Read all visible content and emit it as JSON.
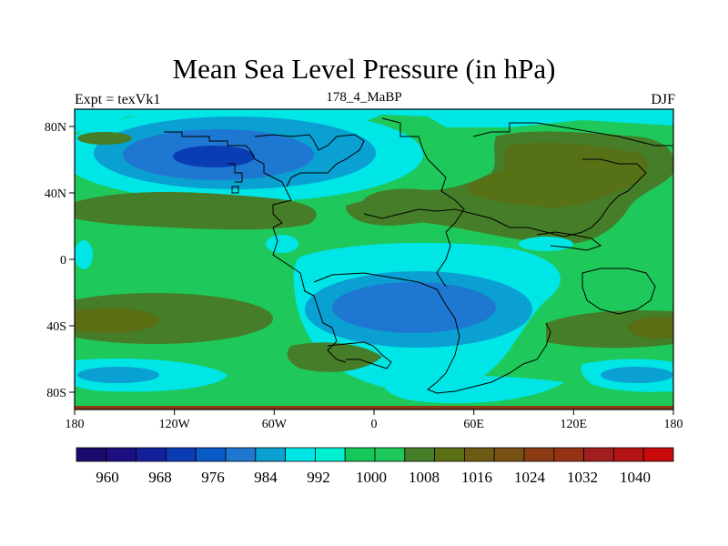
{
  "title": "Mean Sea Level Pressure (in hPa)",
  "experiment_label": "Expt = texVk1",
  "run_label": "178_4_MaBP",
  "season_label": "DJF",
  "colors": {
    "land_outline": "#000000",
    "background": "#ffffff"
  },
  "chart_data": {
    "type": "heatmap",
    "title": "Mean Sea Level Pressure (in hPa)",
    "units": "hPa",
    "x_ticks": [
      "180",
      "120W",
      "60W",
      "0",
      "60E",
      "120E",
      "180"
    ],
    "y_ticks": [
      "80N",
      "40N",
      "0",
      "40S",
      "80S"
    ],
    "x_range": [
      -180,
      180
    ],
    "y_range": [
      -90,
      90
    ],
    "colorbar": {
      "labels": [
        "960",
        "968",
        "976",
        "984",
        "992",
        "1000",
        "1008",
        "1016",
        "1024",
        "1032",
        "1040"
      ],
      "colors": [
        "#1a0a6e",
        "#1b0f82",
        "#14209a",
        "#0a3cb4",
        "#0a5ac8",
        "#1e78d2",
        "#0aa0d2",
        "#00e6e6",
        "#00f0d2",
        "#14c85a",
        "#1ec85a",
        "#467d28",
        "#5a6e14",
        "#6e5a14",
        "#785014",
        "#8c3c14",
        "#963214",
        "#a01e1e",
        "#b41414",
        "#c80a0a"
      ]
    }
  }
}
